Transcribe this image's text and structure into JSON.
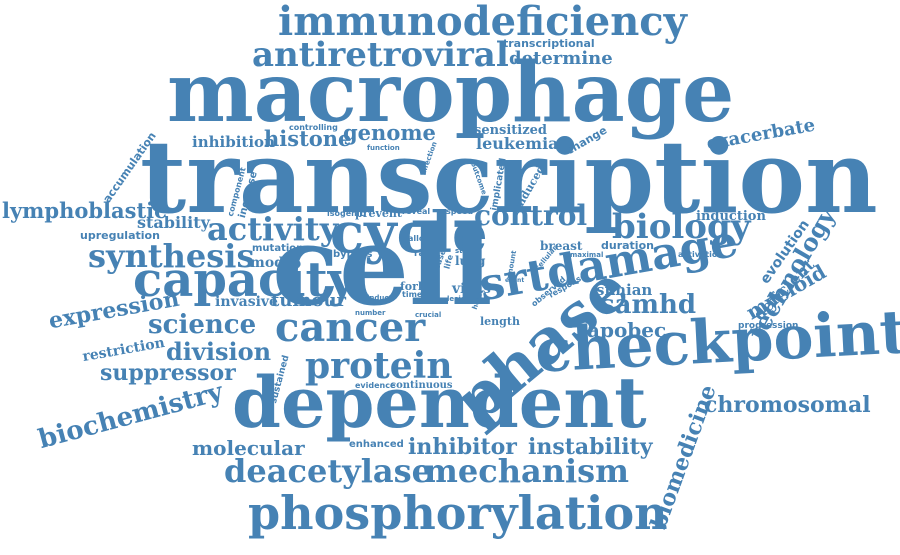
{
  "palette": {
    "word": "#4682b4",
    "background": "#ffffff"
  },
  "words": [
    "immunodeficiency",
    "antiretroviral",
    "transcriptional",
    "determine",
    "macrophage",
    "transcription",
    "inhibition",
    "histone",
    "controlling",
    "genome",
    "sensitized",
    "leukemia",
    "change",
    "exacerbate",
    "accumulation",
    "function",
    "infection",
    "outcome",
    "implicated",
    "lymphoblastic",
    "component",
    "increase",
    "stability",
    "upregulation",
    "activity",
    "isogenic",
    "prevent",
    "reveal",
    "speed",
    "induced",
    "control",
    "induction",
    "biology",
    "technology",
    "synthesis",
    "mutation",
    "model",
    "cycle",
    "allow",
    "level",
    "state",
    "lung",
    "breast",
    "duration",
    "evolution",
    "capacity",
    "bypass",
    "rate",
    "disease",
    "life",
    "amount",
    "cellular",
    "activation",
    "maximal",
    "myeloid",
    "deficient",
    "fork",
    "time",
    "virus",
    "srtdamage",
    "cell",
    "simian",
    "expression",
    "invasive",
    "tumour",
    "induce",
    "number",
    "crucial",
    "event",
    "response",
    "observed",
    "samhd",
    "science",
    "cancer",
    "lesion",
    "heart",
    "length",
    "apobec",
    "progression",
    "restriction",
    "division",
    "checkpoint",
    "phase",
    "suppressor",
    "protein",
    "sustained",
    "evidence",
    "continuous",
    "biochemistry",
    "dependent",
    "chromosomal",
    "biomedicine",
    "molecular",
    "enhanced",
    "inhibitor",
    "instability",
    "deacetylase",
    "mechanism",
    "phosphorylation"
  ]
}
